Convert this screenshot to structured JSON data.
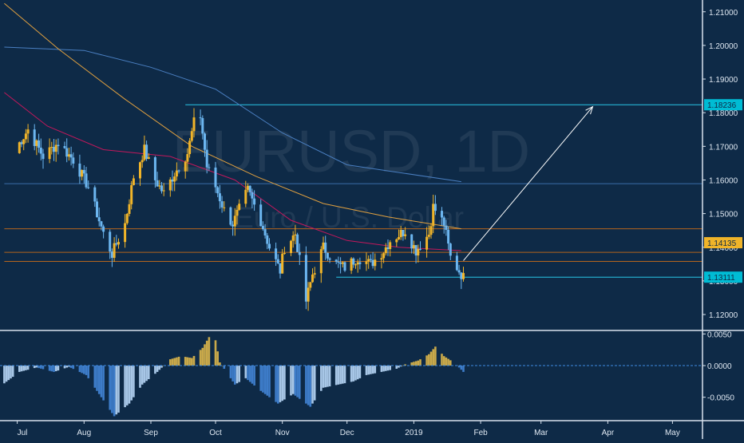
{
  "chart_data": [
    {
      "type": "candlestick",
      "symbol": "EURUSD",
      "timeframe": "1D",
      "watermark_line1": "EURUSD, 1D",
      "watermark_line2": "Euro / U.S. Dollar",
      "x_labels": [
        "Jul",
        "Aug",
        "Sep",
        "Oct",
        "Nov",
        "Dec",
        "2019",
        "Feb",
        "Mar",
        "Apr",
        "May"
      ],
      "y_ticks": [
        "1.21000",
        "1.20000",
        "1.19000",
        "1.18000",
        "1.17000",
        "1.16000",
        "1.15000",
        "1.14000",
        "1.13000",
        "1.12000"
      ],
      "ylim": [
        1.1155,
        1.2135
      ],
      "price_badges": [
        {
          "label": "1.18236",
          "value": 1.18236,
          "color": "#00bcd4"
        },
        {
          "label": "1.14135",
          "value": 1.14135,
          "color": "#f0b429"
        },
        {
          "label": "1.13111",
          "value": 1.13111,
          "color": "#00bcd4"
        }
      ],
      "horizontal_levels": [
        {
          "value": 1.18236,
          "color": "#29c5e6",
          "from_date": "2018-09-17"
        },
        {
          "value": 1.13111,
          "color": "#29c5e6",
          "from_date": "2018-11-26"
        },
        {
          "value": 1.1589,
          "color": "#3a6ea8",
          "from_date": "2018-06-25"
        },
        {
          "value": 1.1455,
          "color": "#b5651d",
          "from_date": "2018-06-25"
        },
        {
          "value": 1.1385,
          "color": "#b5651d",
          "from_date": "2018-06-25"
        },
        {
          "value": 1.1358,
          "color": "#b5651d",
          "from_date": "2018-06-25"
        }
      ],
      "arrow": {
        "from": {
          "date": "2019-01-24",
          "price": 1.136
        },
        "to": {
          "date": "2019-03-25",
          "price": 1.1818
        }
      },
      "colors": {
        "up": "#f0b429",
        "down": "#6cb6f0",
        "background": "#0e2a47",
        "ma_fast": "#c2185b",
        "ma_mid": "#e0a040",
        "ma_slow": "#4a7fc1"
      },
      "price_path": [
        [
          "2018-06-29",
          1.168
        ],
        [
          "2018-07-06",
          1.175
        ],
        [
          "2018-07-13",
          1.167
        ],
        [
          "2018-07-20",
          1.171
        ],
        [
          "2018-07-27",
          1.166
        ],
        [
          "2018-08-03",
          1.158
        ],
        [
          "2018-08-10",
          1.144
        ],
        [
          "2018-08-14",
          1.138
        ],
        [
          "2018-08-20",
          1.147
        ],
        [
          "2018-08-24",
          1.161
        ],
        [
          "2018-08-29",
          1.169
        ],
        [
          "2018-09-03",
          1.16
        ],
        [
          "2018-09-07",
          1.156
        ],
        [
          "2018-09-12",
          1.162
        ],
        [
          "2018-09-18",
          1.168
        ],
        [
          "2018-09-21",
          1.177
        ],
        [
          "2018-09-24",
          1.179
        ],
        [
          "2018-09-27",
          1.164
        ],
        [
          "2018-10-01",
          1.158
        ],
        [
          "2018-10-05",
          1.151
        ],
        [
          "2018-10-09",
          1.147
        ],
        [
          "2018-10-16",
          1.157
        ],
        [
          "2018-10-22",
          1.148
        ],
        [
          "2018-10-26",
          1.14
        ],
        [
          "2018-10-31",
          1.133
        ],
        [
          "2018-11-02",
          1.14
        ],
        [
          "2018-11-07",
          1.144
        ],
        [
          "2018-11-12",
          1.124
        ],
        [
          "2018-11-15",
          1.132
        ],
        [
          "2018-11-20",
          1.14
        ],
        [
          "2018-11-26",
          1.135
        ],
        [
          "2018-11-30",
          1.134
        ],
        [
          "2018-12-06",
          1.137
        ],
        [
          "2018-12-12",
          1.135
        ],
        [
          "2018-12-18",
          1.139
        ],
        [
          "2018-12-21",
          1.142
        ],
        [
          "2018-12-28",
          1.145
        ],
        [
          "2019-01-02",
          1.139
        ],
        [
          "2019-01-08",
          1.144
        ],
        [
          "2019-01-10",
          1.152
        ],
        [
          "2019-01-15",
          1.147
        ],
        [
          "2019-01-18",
          1.137
        ],
        [
          "2019-01-24",
          1.131
        ]
      ],
      "moving_averages": [
        {
          "name": "ma_slow",
          "color": "#4a7fc1",
          "points": [
            [
              "2018-06-25",
              1.1995
            ],
            [
              "2018-08-01",
              1.1985
            ],
            [
              "2018-09-01",
              1.1935
            ],
            [
              "2018-10-01",
              1.187
            ],
            [
              "2018-11-01",
              1.174
            ],
            [
              "2018-12-01",
              1.1645
            ],
            [
              "2019-01-23",
              1.1595
            ]
          ]
        },
        {
          "name": "ma_mid",
          "color": "#e0a040",
          "points": [
            [
              "2018-06-25",
              1.2125
            ],
            [
              "2018-07-20",
              1.199
            ],
            [
              "2018-08-20",
              1.184
            ],
            [
              "2018-09-20",
              1.17
            ],
            [
              "2018-10-20",
              1.161
            ],
            [
              "2018-11-20",
              1.153
            ],
            [
              "2018-12-20",
              1.149
            ],
            [
              "2019-01-23",
              1.1455
            ]
          ]
        },
        {
          "name": "ma_fast",
          "color": "#c2185b",
          "points": [
            [
              "2018-06-25",
              1.186
            ],
            [
              "2018-07-15",
              1.176
            ],
            [
              "2018-08-10",
              1.169
            ],
            [
              "2018-09-10",
              1.167
            ],
            [
              "2018-10-10",
              1.16
            ],
            [
              "2018-11-05",
              1.148
            ],
            [
              "2018-12-01",
              1.142
            ],
            [
              "2018-12-25",
              1.14
            ],
            [
              "2019-01-23",
              1.139
            ]
          ]
        }
      ]
    },
    {
      "type": "histogram",
      "y_ticks": [
        "0.0050",
        "0.0000",
        "-0.0050"
      ],
      "ylim": [
        -0.0087,
        0.0053
      ],
      "zero_line_color": "#3d8be0",
      "colors": {
        "positive": "#c9a94a",
        "negative_strong": "#3d7cc9",
        "negative_weak": "#a7c6e6"
      },
      "profile": [
        [
          "2018-06-25",
          -0.0028
        ],
        [
          "2018-07-02",
          -0.001
        ],
        [
          "2018-07-10",
          -0.0003
        ],
        [
          "2018-07-18",
          -0.001
        ],
        [
          "2018-07-25",
          -0.0002
        ],
        [
          "2018-08-02",
          -0.0015
        ],
        [
          "2018-08-08",
          -0.0045
        ],
        [
          "2018-08-15",
          -0.008
        ],
        [
          "2018-08-22",
          -0.006
        ],
        [
          "2018-08-28",
          -0.003
        ],
        [
          "2018-09-04",
          -0.001
        ],
        [
          "2018-09-10",
          0.001
        ],
        [
          "2018-09-15",
          0.0015
        ],
        [
          "2018-09-20",
          0.0012
        ],
        [
          "2018-09-25",
          0.0028
        ],
        [
          "2018-09-28",
          0.0045
        ],
        [
          "2018-10-01",
          0.004
        ],
        [
          "2018-10-03",
          0.0005
        ],
        [
          "2018-10-06",
          -0.001
        ],
        [
          "2018-10-10",
          -0.003
        ],
        [
          "2018-10-15",
          -0.002
        ],
        [
          "2018-10-22",
          -0.004
        ],
        [
          "2018-10-30",
          -0.006
        ],
        [
          "2018-11-06",
          -0.0045
        ],
        [
          "2018-11-14",
          -0.0065
        ],
        [
          "2018-11-20",
          -0.0035
        ],
        [
          "2018-11-27",
          -0.003
        ],
        [
          "2018-12-04",
          -0.0025
        ],
        [
          "2018-12-10",
          -0.0015
        ],
        [
          "2018-12-17",
          -0.001
        ],
        [
          "2018-12-24",
          -0.0005
        ],
        [
          "2018-12-28",
          0.0002
        ],
        [
          "2019-01-03",
          0.0008
        ],
        [
          "2019-01-08",
          0.0018
        ],
        [
          "2019-01-11",
          0.003
        ],
        [
          "2019-01-15",
          0.0015
        ],
        [
          "2019-01-20",
          0.0004
        ],
        [
          "2019-01-24",
          -0.001
        ]
      ]
    }
  ]
}
